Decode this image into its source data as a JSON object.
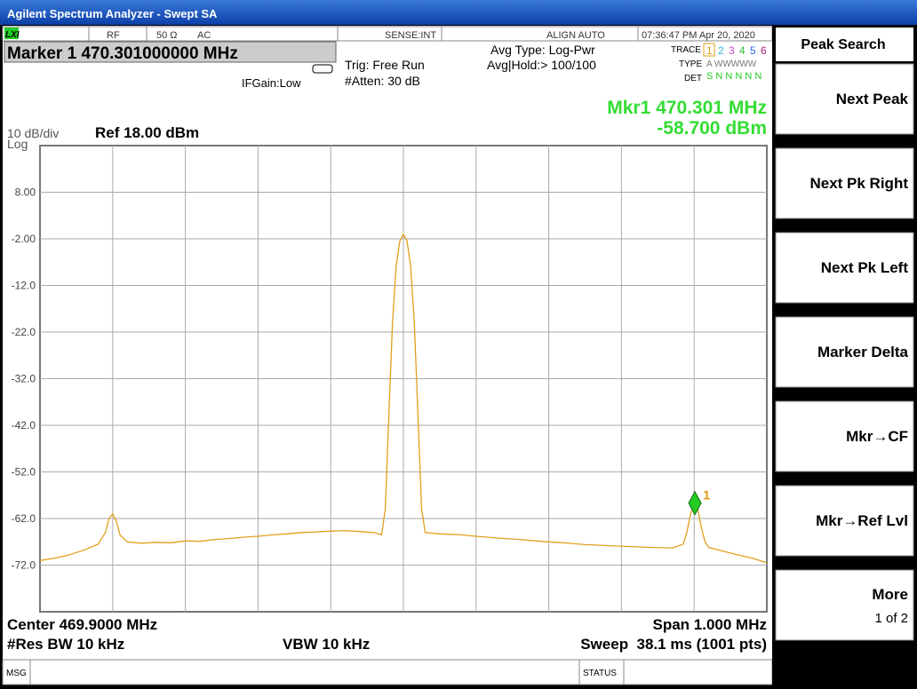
{
  "window": {
    "title": "Agilent Spectrum Analyzer - Swept SA"
  },
  "status_bar": {
    "logo": "LXI",
    "rf": "RF",
    "impedance": "50 Ω",
    "coupling": "AC",
    "sense": "SENSE:INT",
    "align": "ALIGN AUTO",
    "datetime": "07:36:47 PM Apr 20, 2020"
  },
  "header": {
    "marker_setting": "Marker 1 470.301000000 MHz",
    "if_gain": "IFGain:Low",
    "trigger": "Trig: Free Run",
    "atten": "#Atten: 30 dB",
    "avg_type": "Avg Type: Log-Pwr",
    "avg_hold": "Avg|Hold:> 100/100",
    "trace_label": "TRACE",
    "trace_numbers": [
      "1",
      "2",
      "3",
      "4",
      "5",
      "6"
    ],
    "type_label": "TYPE",
    "type_values": "A WWWWW",
    "det_label": "DET",
    "det_values": "S N N N N N"
  },
  "marker_readout": {
    "frequency": "Mkr1 470.301 MHz",
    "amplitude": "-58.700 dBm"
  },
  "scale": {
    "per_div": "10 dB/div",
    "mode": "Log",
    "ref": "Ref 18.00 dBm"
  },
  "chart_data": {
    "type": "line",
    "color": "#e0a01c",
    "xlim": [
      469.4,
      470.4
    ],
    "ylim": [
      -82,
      18
    ],
    "yticks": [
      {
        "value": 8,
        "label": "8.00"
      },
      {
        "value": -2,
        "label": "-2.00"
      },
      {
        "value": -12,
        "label": "-12.0"
      },
      {
        "value": -22,
        "label": "-22.0"
      },
      {
        "value": -32,
        "label": "-32.0"
      },
      {
        "value": -42,
        "label": "-42.0"
      },
      {
        "value": -52,
        "label": "-52.0"
      },
      {
        "value": -62,
        "label": "-62.0"
      },
      {
        "value": -72,
        "label": "-72.0"
      }
    ],
    "grid": true,
    "x": [
      469.4,
      469.42,
      469.44,
      469.46,
      469.48,
      469.49,
      469.495,
      469.5,
      469.505,
      469.51,
      469.52,
      469.54,
      469.56,
      469.58,
      469.6,
      469.62,
      469.64,
      469.66,
      469.68,
      469.7,
      469.72,
      469.74,
      469.76,
      469.78,
      469.8,
      469.82,
      469.84,
      469.86,
      469.87,
      469.875,
      469.88,
      469.885,
      469.89,
      469.895,
      469.9,
      469.905,
      469.91,
      469.915,
      469.92,
      469.925,
      469.93,
      469.95,
      469.98,
      470.0,
      470.03,
      470.06,
      470.09,
      470.12,
      470.15,
      470.18,
      470.21,
      470.24,
      470.27,
      470.285,
      470.29,
      470.295,
      470.3,
      470.301,
      470.305,
      470.31,
      470.315,
      470.32,
      470.34,
      470.36,
      470.38,
      470.4
    ],
    "values": [
      -71.0,
      -70.5,
      -69.8,
      -68.8,
      -67.5,
      -65.0,
      -62.0,
      -61.0,
      -62.5,
      -65.5,
      -67.0,
      -67.3,
      -67.1,
      -67.2,
      -66.8,
      -66.9,
      -66.5,
      -66.3,
      -66.0,
      -65.8,
      -65.5,
      -65.3,
      -65.0,
      -64.9,
      -64.7,
      -64.6,
      -64.8,
      -65.0,
      -65.5,
      -60.0,
      -40.0,
      -20.0,
      -8.0,
      -2.5,
      -1.0,
      -2.5,
      -8.0,
      -20.0,
      -40.0,
      -60.0,
      -65.0,
      -65.3,
      -65.5,
      -65.8,
      -66.2,
      -66.5,
      -66.9,
      -67.2,
      -67.6,
      -67.8,
      -68.0,
      -68.2,
      -68.3,
      -67.5,
      -65.0,
      -61.0,
      -59.0,
      -58.7,
      -60.0,
      -64.0,
      -67.0,
      -68.2,
      -69.0,
      -69.8,
      -70.5,
      -71.5
    ],
    "marker": {
      "label": "1",
      "x": 470.301,
      "y": -58.7,
      "color": "#22cc22"
    }
  },
  "footer": {
    "center": "Center 469.9000 MHz",
    "span": "Span 1.000 MHz",
    "rbw": "#Res BW 10 kHz",
    "vbw": "VBW 10 kHz",
    "sweep": "Sweep  38.1 ms (1001 pts)",
    "msg": "MSG",
    "status": "STATUS"
  },
  "softkeys": {
    "title": "Peak Search",
    "keys": [
      "Next Peak",
      "Next Pk Right",
      "Next Pk Left",
      "Marker Delta",
      "Mkr→CF",
      "Mkr→Ref Lvl",
      "More"
    ],
    "page": "1 of 2"
  }
}
